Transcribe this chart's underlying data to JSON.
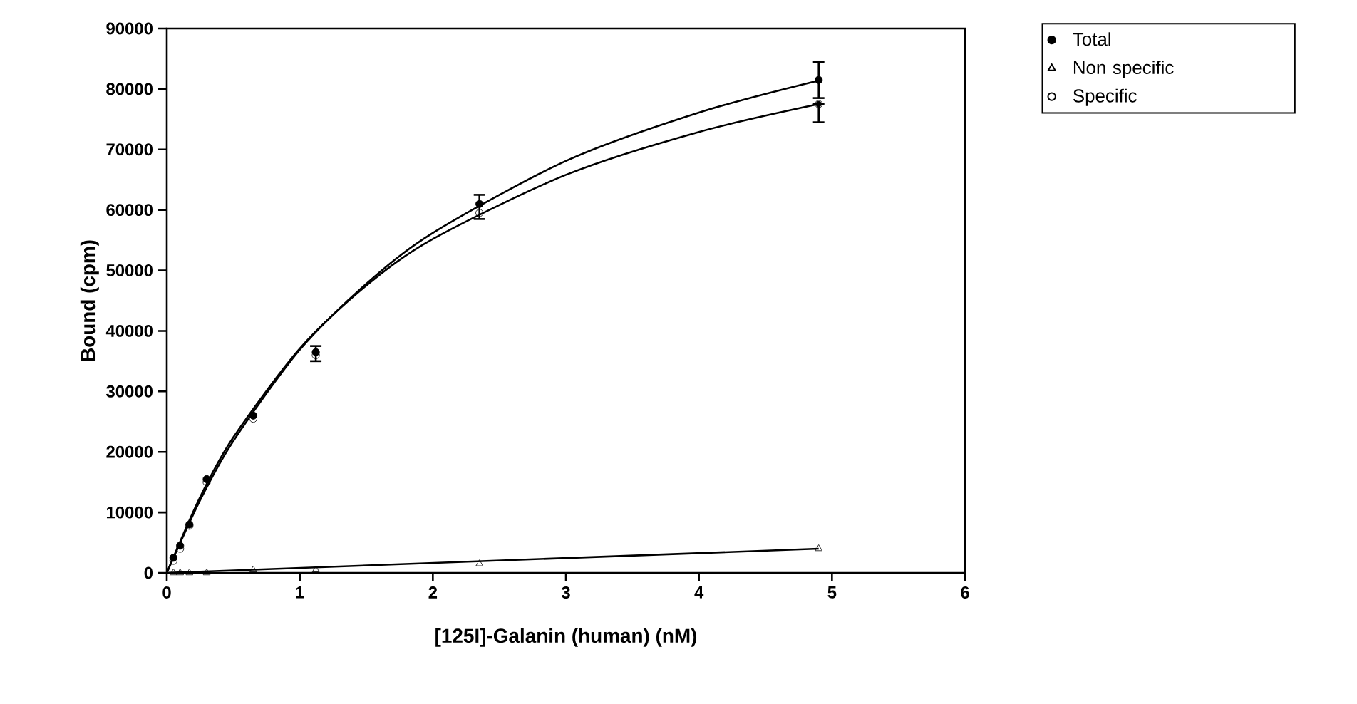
{
  "chart_data": {
    "type": "scatter",
    "xlabel": "[125I]-Galanin (human) (nM)",
    "ylabel": "Bound (cpm)",
    "xlim": [
      0,
      6
    ],
    "xticks": [
      0,
      1,
      2,
      3,
      4,
      5,
      6
    ],
    "ylim": [
      0,
      90000
    ],
    "yticks": [
      0,
      10000,
      20000,
      30000,
      40000,
      50000,
      60000,
      70000,
      80000,
      90000
    ],
    "grid": false,
    "legend": "top right",
    "series": [
      {
        "name": "Total",
        "type": "scatter",
        "marker": "circle",
        "color": "#000000",
        "x": [
          0.05,
          0.1,
          0.17,
          0.3,
          0.65,
          1.12,
          2.35,
          4.9
        ],
        "values": [
          2500,
          4500,
          8000,
          15500,
          26000,
          36500,
          61000,
          81500
        ],
        "errors": [
          null,
          null,
          null,
          null,
          null,
          [
            35000,
            37500
          ],
          [
            58500,
            62500
          ],
          [
            78500,
            84500
          ]
        ]
      },
      {
        "name": "Non specific",
        "type": "scatter",
        "marker": "triangle",
        "color": "#000000",
        "x": [
          0.05,
          0.1,
          0.17,
          0.3,
          0.65,
          1.12,
          2.35,
          4.9
        ],
        "values": [
          0,
          0,
          0,
          0,
          500,
          500,
          1500,
          4000
        ]
      },
      {
        "name": "Specific",
        "type": "scatter",
        "marker": "circle-open",
        "color": "#000000",
        "x": [
          0.05,
          0.1,
          0.17,
          0.3,
          0.65,
          1.12,
          2.35,
          4.9
        ],
        "values": [
          2000,
          4000,
          7800,
          15000,
          25500,
          36000,
          59500,
          77500
        ],
        "errors": [
          null,
          null,
          null,
          null,
          null,
          null,
          null,
          [
            74500,
            77500
          ]
        ]
      },
      {
        "type": "line",
        "marker": "none",
        "color": "#000000",
        "x": [
          0,
          0.25,
          0.5,
          1,
          1.5,
          2,
          3,
          4,
          4.9
        ],
        "values": [
          0,
          12000,
          21800,
          36900,
          47800,
          56200,
          68100,
          76100,
          81400
        ]
      },
      {
        "type": "line",
        "marker": "none",
        "color": "#000000",
        "x": [
          0,
          0.25,
          0.5,
          1,
          1.5,
          2,
          3,
          4,
          4.9
        ],
        "values": [
          0,
          12500,
          22400,
          37100,
          47500,
          55200,
          65800,
          72900,
          77500
        ]
      },
      {
        "type": "line",
        "marker": "none",
        "color": "#000000",
        "x": [
          0,
          4.9
        ],
        "values": [
          0,
          4000
        ]
      }
    ]
  }
}
